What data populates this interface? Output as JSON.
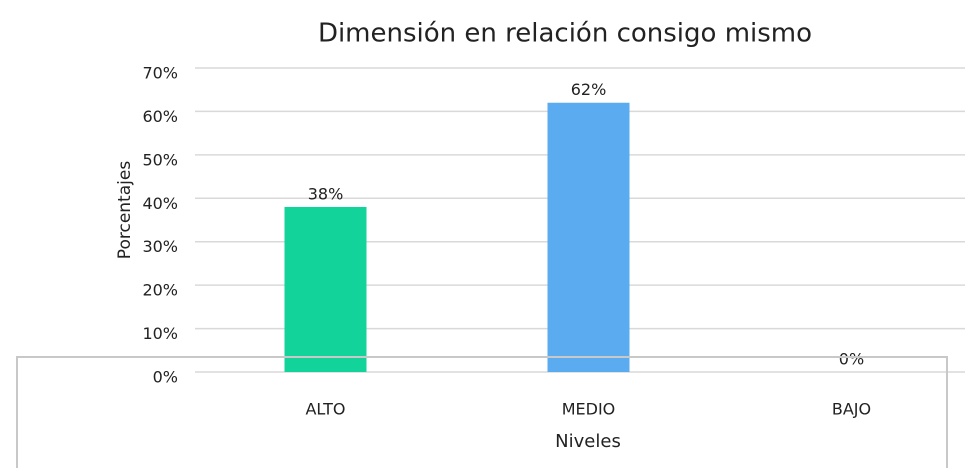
{
  "chart_data": {
    "type": "bar",
    "title": "Dimensión en relación consigo mismo",
    "x_label": "Niveles",
    "y_label": "Porcentajes",
    "categories": [
      "ALTO",
      "MEDIO",
      "BAJO"
    ],
    "values": [
      38,
      62,
      0
    ],
    "value_labels": [
      "38%",
      "62%",
      "0%"
    ],
    "colors": [
      "#12d39a",
      "#5aabf0",
      "#5aabf0"
    ],
    "ylim": [
      0,
      70
    ],
    "yticks": [
      {
        "value": 0,
        "label": "0%"
      },
      {
        "value": 10,
        "label": "10%"
      },
      {
        "value": 20,
        "label": "20%"
      },
      {
        "value": 30,
        "label": "30%"
      },
      {
        "value": 40,
        "label": "40%"
      },
      {
        "value": 50,
        "label": "50%"
      },
      {
        "value": 60,
        "label": "60%"
      },
      {
        "value": 70,
        "label": "70%"
      }
    ],
    "grid": true
  }
}
